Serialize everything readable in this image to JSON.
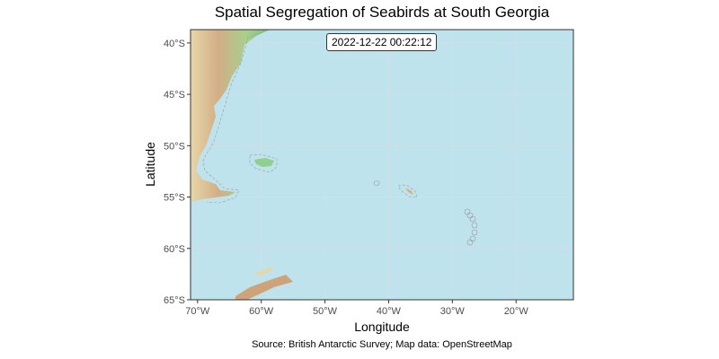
{
  "title": "Spatial Segregation of Seabirds at South Georgia",
  "timestamp_label": "2022-12-22 00:22:12",
  "caption": "Source: British Antarctic Survey; Map data: OpenStreetMap",
  "x_axis": {
    "title": "Longitude",
    "ticks": [
      "70°W",
      "60°W",
      "50°W",
      "40°W",
      "30°W",
      "20°W"
    ],
    "values": [
      -70,
      -60,
      -50,
      -40,
      -30,
      -20
    ],
    "range": [
      -71.1,
      -11
    ]
  },
  "y_axis": {
    "title": "Latitude",
    "ticks": [
      "40°S",
      "45°S",
      "50°S",
      "55°S",
      "60°S",
      "65°S"
    ],
    "values": [
      -40,
      -45,
      -50,
      -55,
      -60,
      -65
    ],
    "range": [
      -65,
      -38.7
    ]
  },
  "colors": {
    "ocean": "#bfe3ec",
    "grid": "#d3e3e8",
    "land_low": "#8fc98a",
    "land_high": "#c9a27c",
    "border": "#888888"
  }
}
